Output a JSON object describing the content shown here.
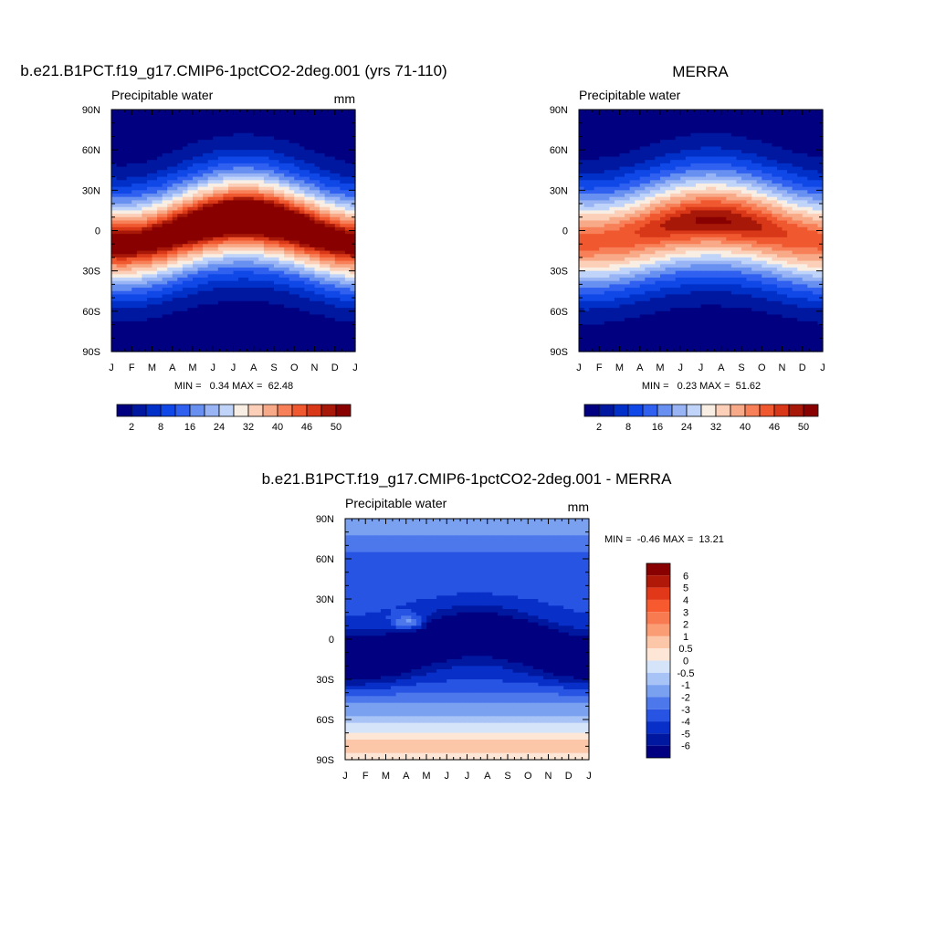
{
  "colors": {
    "abs_palette": [
      "#000080",
      "#0018a0",
      "#0030c8",
      "#1048e8",
      "#3060f0",
      "#6890f0",
      "#98b4f4",
      "#c0d4fa",
      "#f8eee4",
      "#fcd0b8",
      "#f8aa88",
      "#f88058",
      "#f05830",
      "#d83818",
      "#a81808",
      "#880000"
    ],
    "diff_palette": [
      "#880000",
      "#b01808",
      "#e03818",
      "#f85a30",
      "#f87a50",
      "#fa9c74",
      "#fcc6a8",
      "#fde6d6",
      "#d6e4fa",
      "#a8c4f6",
      "#7aa0f0",
      "#4c78ec",
      "#2854e4",
      "#0830c8",
      "#0018a0",
      "#000080"
    ]
  },
  "chart_data": [
    {
      "type": "heatmap",
      "title": "b.e21.B1PCT.f19_g17.CMIP6-1pctCO2-2deg.001 (yrs 71-110)",
      "left_label": "Precipitable water",
      "right_label": "mm",
      "x_ticks": [
        "J",
        "F",
        "M",
        "A",
        "M",
        "J",
        "J",
        "A",
        "S",
        "O",
        "N",
        "D",
        "J"
      ],
      "y_ticks": [
        "90N",
        "60N",
        "30N",
        "0",
        "30S",
        "60S",
        "90S"
      ],
      "ylim": [
        -90,
        90
      ],
      "stats": "MIN =   0.34 MAX =  62.48",
      "min": 0.34,
      "max": 62.48,
      "colorbar": {
        "orientation": "horizontal",
        "labels": [
          "2",
          "8",
          "16",
          "24",
          "32",
          "40",
          "46",
          "50"
        ],
        "boxes": 16
      },
      "field": {
        "equator_value": 52,
        "polar_value": 0.5,
        "itcz_amplitude_deg": 10,
        "width_deg": 22
      }
    },
    {
      "type": "heatmap",
      "title": "MERRA",
      "left_label": "Precipitable water",
      "right_label": "",
      "x_ticks": [
        "J",
        "F",
        "M",
        "A",
        "M",
        "J",
        "J",
        "A",
        "S",
        "O",
        "N",
        "D",
        "J"
      ],
      "y_ticks": [
        "90N",
        "60N",
        "30N",
        "0",
        "30S",
        "60S",
        "90S"
      ],
      "ylim": [
        -90,
        90
      ],
      "stats": "MIN =   0.23 MAX =  51.62",
      "min": 0.23,
      "max": 51.62,
      "colorbar": {
        "orientation": "horizontal",
        "labels": [
          "2",
          "8",
          "16",
          "24",
          "32",
          "40",
          "46",
          "50"
        ],
        "boxes": 16
      },
      "field": {
        "equator_value": 44,
        "polar_value": 0.3,
        "itcz_amplitude_deg": 8,
        "width_deg": 24
      }
    },
    {
      "type": "heatmap",
      "title": "b.e21.B1PCT.f19_g17.CMIP6-1pctCO2-2deg.001 - MERRA",
      "left_label": "Precipitable water",
      "right_label": "mm",
      "x_ticks": [
        "J",
        "F",
        "M",
        "A",
        "M",
        "J",
        "J",
        "A",
        "S",
        "O",
        "N",
        "D",
        "J"
      ],
      "y_ticks": [
        "90N",
        "60N",
        "30N",
        "0",
        "30S",
        "60S",
        "90S"
      ],
      "ylim": [
        -90,
        90
      ],
      "stats": "MIN =  -0.46 MAX =  13.21",
      "min": -0.46,
      "max": 13.21,
      "colorbar": {
        "orientation": "vertical",
        "labels": [
          "6",
          "5",
          "4",
          "3",
          "2",
          "1",
          "0.5",
          "0",
          "-0.5",
          "-1",
          "-2",
          "-3",
          "-4",
          "-5",
          "-6"
        ],
        "boxes": 16
      }
    }
  ]
}
